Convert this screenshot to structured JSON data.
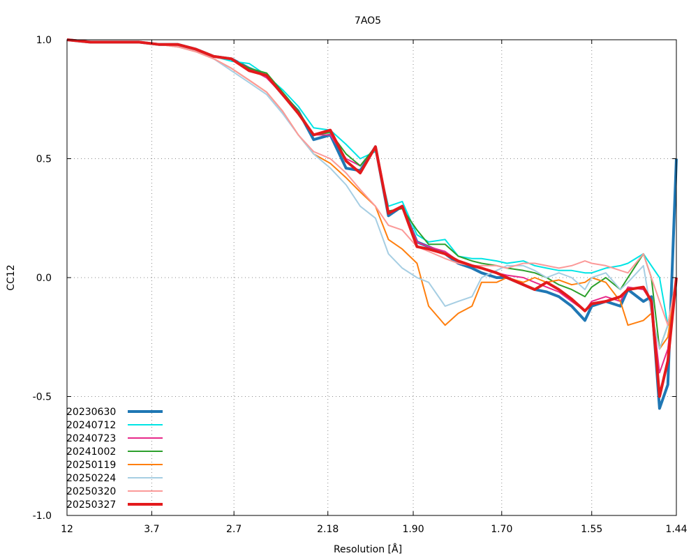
{
  "chart_data": {
    "type": "line",
    "title": "7AO5",
    "xlabel": "Resolution [Å]",
    "ylabel": "CC12",
    "x_tick_labels": [
      "12",
      "3.7",
      "2.7",
      "2.18",
      "1.90",
      "1.70",
      "1.55",
      "1.44"
    ],
    "x_tick_positions_resolution": [
      12,
      3.7,
      2.7,
      2.18,
      1.9,
      1.7,
      1.55,
      1.44
    ],
    "y_tick_labels": [
      "1.0",
      "0.5",
      "0.0",
      "-0.5",
      "-1.0"
    ],
    "y_ticks": [
      1.0,
      0.5,
      0.0,
      -0.5,
      -1.0
    ],
    "ylim": [
      -1.0,
      1.0
    ],
    "x_axis": "resolution in Å, scaled as 1/d²",
    "grid": true,
    "legend_position": "bottom-left",
    "series": [
      {
        "name": "20230630",
        "color": "#1f77b4",
        "thick": true,
        "x": [
          12.0,
          6.29,
          4.69,
          3.98,
          3.56,
          3.27,
          3.05,
          2.87,
          2.72,
          2.59,
          2.48,
          2.39,
          2.31,
          2.24,
          2.17,
          2.11,
          2.06,
          2.01,
          1.97,
          1.93,
          1.89,
          1.86,
          1.82,
          1.79,
          1.76,
          1.74,
          1.71,
          1.69,
          1.66,
          1.64,
          1.62,
          1.6,
          1.58,
          1.56,
          1.55,
          1.53,
          1.51,
          1.5,
          1.48,
          1.47,
          1.46,
          1.45,
          1.44
        ],
        "y": [
          1.0,
          0.99,
          0.99,
          0.99,
          0.98,
          0.98,
          0.96,
          0.93,
          0.92,
          0.88,
          0.85,
          0.77,
          0.7,
          0.58,
          0.6,
          0.46,
          0.45,
          0.55,
          0.26,
          0.3,
          0.15,
          0.13,
          0.1,
          0.06,
          0.04,
          0.02,
          0.0,
          0.0,
          -0.03,
          -0.05,
          -0.06,
          -0.08,
          -0.12,
          -0.18,
          -0.12,
          -0.1,
          -0.12,
          -0.05,
          -0.1,
          -0.08,
          -0.55,
          -0.45,
          0.5
        ]
      },
      {
        "name": "20240712",
        "color": "#00e5e5",
        "thick": false,
        "x": [
          12.0,
          6.29,
          4.69,
          3.98,
          3.56,
          3.27,
          3.05,
          2.87,
          2.72,
          2.59,
          2.48,
          2.39,
          2.31,
          2.24,
          2.17,
          2.11,
          2.06,
          2.01,
          1.97,
          1.93,
          1.89,
          1.86,
          1.82,
          1.79,
          1.76,
          1.74,
          1.71,
          1.69,
          1.66,
          1.64,
          1.62,
          1.6,
          1.58,
          1.56,
          1.55,
          1.53,
          1.51,
          1.5,
          1.48,
          1.47,
          1.46,
          1.45,
          1.44
        ],
        "y": [
          1.0,
          0.99,
          0.99,
          0.99,
          0.98,
          0.98,
          0.96,
          0.93,
          0.91,
          0.9,
          0.85,
          0.79,
          0.72,
          0.63,
          0.62,
          0.56,
          0.5,
          0.53,
          0.3,
          0.32,
          0.18,
          0.15,
          0.16,
          0.09,
          0.08,
          0.08,
          0.07,
          0.06,
          0.07,
          0.05,
          0.04,
          0.03,
          0.03,
          0.02,
          0.02,
          0.04,
          0.05,
          0.06,
          0.1,
          0.05,
          0.0,
          -0.2,
          0.0
        ]
      },
      {
        "name": "20240723",
        "color": "#e7298a",
        "thick": false,
        "x": [
          12.0,
          6.29,
          4.69,
          3.98,
          3.56,
          3.27,
          3.05,
          2.87,
          2.72,
          2.59,
          2.48,
          2.39,
          2.31,
          2.24,
          2.17,
          2.11,
          2.06,
          2.01,
          1.97,
          1.93,
          1.89,
          1.86,
          1.82,
          1.79,
          1.76,
          1.74,
          1.71,
          1.69,
          1.66,
          1.64,
          1.62,
          1.6,
          1.58,
          1.56,
          1.55,
          1.53,
          1.51,
          1.5,
          1.48,
          1.47,
          1.46,
          1.45,
          1.44
        ],
        "y": [
          1.0,
          0.99,
          0.99,
          0.99,
          0.98,
          0.98,
          0.96,
          0.93,
          0.92,
          0.88,
          0.84,
          0.77,
          0.7,
          0.6,
          0.6,
          0.5,
          0.47,
          0.55,
          0.27,
          0.3,
          0.15,
          0.13,
          0.11,
          0.07,
          0.05,
          0.04,
          0.02,
          0.01,
          0.0,
          -0.02,
          -0.04,
          -0.06,
          -0.1,
          -0.14,
          -0.1,
          -0.08,
          -0.1,
          -0.04,
          -0.05,
          -0.1,
          -0.4,
          -0.3,
          0.0
        ]
      },
      {
        "name": "20241002",
        "color": "#2ca02c",
        "thick": false,
        "x": [
          12.0,
          6.29,
          4.69,
          3.98,
          3.56,
          3.27,
          3.05,
          2.87,
          2.72,
          2.59,
          2.48,
          2.39,
          2.31,
          2.24,
          2.17,
          2.11,
          2.06,
          2.01,
          1.97,
          1.93,
          1.89,
          1.86,
          1.82,
          1.79,
          1.76,
          1.74,
          1.71,
          1.69,
          1.66,
          1.64,
          1.62,
          1.6,
          1.58,
          1.56,
          1.55,
          1.53,
          1.51,
          1.5,
          1.48,
          1.47,
          1.46,
          1.45,
          1.44
        ],
        "y": [
          1.0,
          0.99,
          0.99,
          0.99,
          0.98,
          0.98,
          0.96,
          0.93,
          0.92,
          0.88,
          0.86,
          0.78,
          0.7,
          0.6,
          0.61,
          0.52,
          0.47,
          0.55,
          0.28,
          0.29,
          0.2,
          0.14,
          0.14,
          0.09,
          0.07,
          0.06,
          0.05,
          0.04,
          0.03,
          0.02,
          0.0,
          -0.03,
          -0.05,
          -0.08,
          -0.04,
          0.0,
          -0.05,
          0.0,
          0.1,
          0.0,
          -0.3,
          -0.2,
          0.0
        ]
      },
      {
        "name": "20250119",
        "color": "#ff7f0e",
        "thick": false,
        "x": [
          12.0,
          6.29,
          4.69,
          3.98,
          3.56,
          3.27,
          3.05,
          2.87,
          2.72,
          2.59,
          2.48,
          2.39,
          2.31,
          2.24,
          2.17,
          2.11,
          2.06,
          2.01,
          1.97,
          1.93,
          1.89,
          1.86,
          1.82,
          1.79,
          1.76,
          1.74,
          1.71,
          1.69,
          1.66,
          1.64,
          1.62,
          1.6,
          1.58,
          1.56,
          1.55,
          1.53,
          1.51,
          1.5,
          1.48,
          1.47,
          1.46,
          1.45,
          1.44
        ],
        "y": [
          1.0,
          0.99,
          0.99,
          0.99,
          0.98,
          0.97,
          0.95,
          0.92,
          0.88,
          0.83,
          0.78,
          0.7,
          0.6,
          0.52,
          0.48,
          0.42,
          0.36,
          0.3,
          0.16,
          0.12,
          0.06,
          -0.12,
          -0.2,
          -0.15,
          -0.12,
          -0.02,
          -0.02,
          0.0,
          -0.02,
          0.0,
          -0.02,
          -0.01,
          -0.03,
          -0.02,
          0.0,
          -0.02,
          -0.1,
          -0.2,
          -0.18,
          -0.15,
          -0.3,
          -0.25,
          0.0
        ]
      },
      {
        "name": "20250224",
        "color": "#a6cee3",
        "thick": false,
        "x": [
          12.0,
          6.29,
          4.69,
          3.98,
          3.56,
          3.27,
          3.05,
          2.87,
          2.72,
          2.59,
          2.48,
          2.39,
          2.31,
          2.24,
          2.17,
          2.11,
          2.06,
          2.01,
          1.97,
          1.93,
          1.89,
          1.86,
          1.82,
          1.79,
          1.76,
          1.74,
          1.71,
          1.69,
          1.66,
          1.64,
          1.62,
          1.6,
          1.58,
          1.56,
          1.55,
          1.53,
          1.51,
          1.5,
          1.48,
          1.47,
          1.46,
          1.45,
          1.44
        ],
        "y": [
          1.0,
          0.99,
          0.99,
          0.99,
          0.98,
          0.97,
          0.95,
          0.92,
          0.87,
          0.82,
          0.77,
          0.69,
          0.6,
          0.52,
          0.46,
          0.39,
          0.3,
          0.25,
          0.1,
          0.04,
          0.0,
          -0.02,
          -0.12,
          -0.1,
          -0.08,
          0.0,
          0.03,
          0.05,
          0.05,
          0.03,
          0.0,
          0.02,
          0.0,
          -0.05,
          0.0,
          0.02,
          -0.05,
          -0.02,
          0.05,
          -0.15,
          -0.3,
          -0.2,
          0.0
        ]
      },
      {
        "name": "20250320",
        "color": "#fb9a99",
        "thick": false,
        "x": [
          12.0,
          6.29,
          4.69,
          3.98,
          3.56,
          3.27,
          3.05,
          2.87,
          2.72,
          2.59,
          2.48,
          2.39,
          2.31,
          2.24,
          2.17,
          2.11,
          2.06,
          2.01,
          1.97,
          1.93,
          1.89,
          1.86,
          1.82,
          1.79,
          1.76,
          1.74,
          1.71,
          1.69,
          1.66,
          1.64,
          1.62,
          1.6,
          1.58,
          1.56,
          1.55,
          1.53,
          1.51,
          1.5,
          1.48,
          1.47,
          1.46,
          1.45,
          1.44
        ],
        "y": [
          1.0,
          0.99,
          0.99,
          0.99,
          0.98,
          0.97,
          0.95,
          0.92,
          0.88,
          0.83,
          0.78,
          0.7,
          0.6,
          0.53,
          0.5,
          0.44,
          0.37,
          0.3,
          0.22,
          0.2,
          0.13,
          0.11,
          0.08,
          0.06,
          0.05,
          0.05,
          0.05,
          0.04,
          0.06,
          0.06,
          0.05,
          0.04,
          0.05,
          0.07,
          0.06,
          0.05,
          0.03,
          0.02,
          0.1,
          0.0,
          -0.1,
          -0.2,
          0.0
        ]
      },
      {
        "name": "20250327",
        "color": "#e31a1c",
        "thick": true,
        "x": [
          12.0,
          6.29,
          4.69,
          3.98,
          3.56,
          3.27,
          3.05,
          2.87,
          2.72,
          2.59,
          2.48,
          2.39,
          2.31,
          2.24,
          2.17,
          2.11,
          2.06,
          2.01,
          1.97,
          1.93,
          1.89,
          1.86,
          1.82,
          1.79,
          1.76,
          1.74,
          1.71,
          1.69,
          1.66,
          1.64,
          1.62,
          1.6,
          1.58,
          1.56,
          1.55,
          1.53,
          1.51,
          1.5,
          1.48,
          1.47,
          1.46,
          1.45,
          1.44
        ],
        "y": [
          1.0,
          0.99,
          0.99,
          0.99,
          0.98,
          0.98,
          0.96,
          0.93,
          0.92,
          0.87,
          0.85,
          0.77,
          0.69,
          0.6,
          0.62,
          0.49,
          0.44,
          0.55,
          0.27,
          0.3,
          0.13,
          0.12,
          0.1,
          0.07,
          0.05,
          0.04,
          0.02,
          0.0,
          -0.03,
          -0.05,
          -0.02,
          -0.05,
          -0.09,
          -0.14,
          -0.11,
          -0.1,
          -0.08,
          -0.05,
          -0.04,
          -0.1,
          -0.5,
          -0.35,
          0.0
        ]
      }
    ]
  }
}
